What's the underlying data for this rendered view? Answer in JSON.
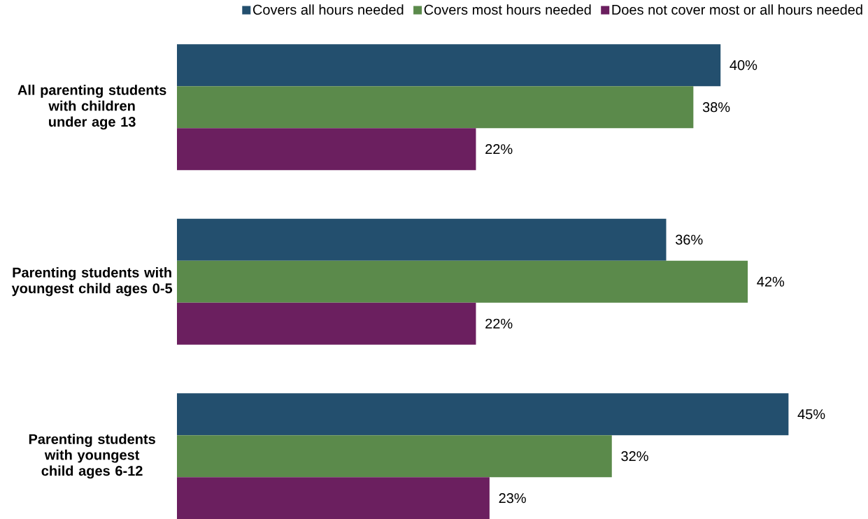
{
  "chart_data": {
    "type": "bar",
    "orientation": "horizontal",
    "tick_labels": "y",
    "legend": "top",
    "categories": [
      "All parenting students with children under age 13",
      "Parenting students with youngest child ages 0-5",
      "Parenting students with youngest child ages 6-12"
    ],
    "series": [
      {
        "name": "Covers all hours needed",
        "color": "#234f6e",
        "values": [
          40,
          36,
          45
        ],
        "value_labels": [
          "40%",
          "36%",
          "45%"
        ]
      },
      {
        "name": "Covers most hours needed",
        "color": "#5b8a4b",
        "values": [
          38,
          42,
          32
        ],
        "value_labels": [
          "38%",
          "42%",
          "32%"
        ]
      },
      {
        "name": "Does not cover most or all hours needed",
        "color": "#6b1f5f",
        "values": [
          22,
          22,
          23
        ],
        "value_labels": [
          "22%",
          "22%",
          "23%"
        ]
      }
    ]
  }
}
